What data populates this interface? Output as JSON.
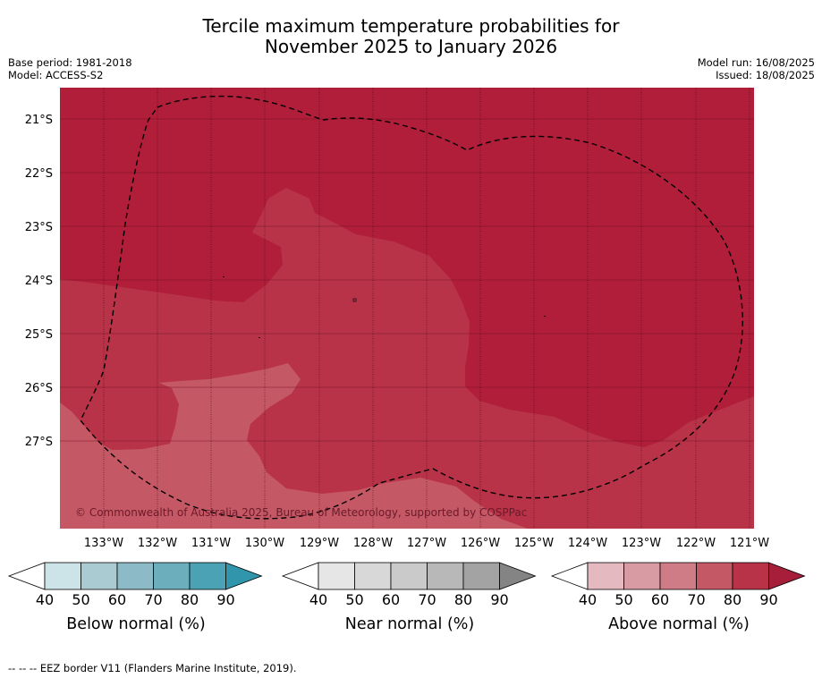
{
  "title_line1": "Tercile maximum temperature probabilities for",
  "title_line2": "November 2025 to January 2026",
  "base_period": "Base period: 1981-2018",
  "model": "Model: ACCESS-S2",
  "model_run": "Model run: 16/08/2025",
  "issued": "Issued: 18/08/2025",
  "copyright": "© Commonwealth of Australia 2025, Bureau of Meteorology, supported by COSPPac",
  "lat_labels": [
    "21°S",
    "22°S",
    "23°S",
    "24°S",
    "25°S",
    "26°S",
    "27°S"
  ],
  "lon_labels": [
    "133°W",
    "132°W",
    "131°W",
    "130°W",
    "129°W",
    "128°W",
    "127°W",
    "126°W",
    "125°W",
    "124°W",
    "123°W",
    "122°W",
    "121°W"
  ],
  "colorbars": [
    {
      "title": "Below normal (%)",
      "ticks": [
        "40",
        "50",
        "60",
        "70",
        "80",
        "90"
      ],
      "colors": [
        "#cce3e8",
        "#aacbd2",
        "#8cbac6",
        "#6daebd",
        "#4aa2b4"
      ],
      "over_color": "#3196ac"
    },
    {
      "title": "Near normal (%)",
      "ticks": [
        "40",
        "50",
        "60",
        "70",
        "80",
        "90"
      ],
      "colors": [
        "#e6e6e6",
        "#d8d8d8",
        "#cacaca",
        "#b8b8b8",
        "#a3a3a3"
      ],
      "over_color": "#848484"
    },
    {
      "title": "Above normal (%)",
      "ticks": [
        "40",
        "50",
        "60",
        "70",
        "80",
        "90"
      ],
      "colors": [
        "#e4bac0",
        "#d99ba3",
        "#d07c86",
        "#c55865",
        "#b83347"
      ],
      "over_color": "#a61e3a"
    }
  ],
  "map_colors": {
    "p70_80": "#c55865",
    "p80_90": "#b83347",
    "p90_plus": "#b01e3a"
  },
  "footnote": "--  --  -- EEZ border V11 (Flanders Marine Institute, 2019)."
}
